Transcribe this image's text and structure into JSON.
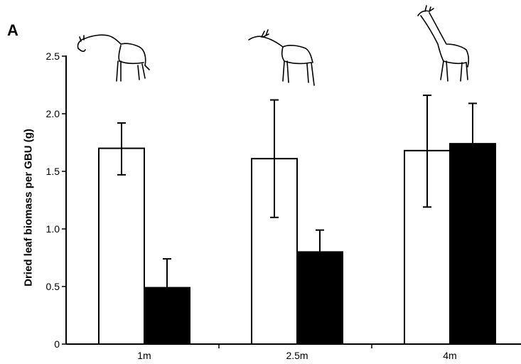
{
  "panel_label": "A",
  "colors": {
    "series_1": "#ffffff",
    "series_2": "#000000",
    "stroke": "#000000"
  },
  "icons": [
    "giraffe-browsing-low-icon",
    "giraffe-browsing-mid-icon",
    "giraffe-browsing-high-icon"
  ],
  "chart_data": {
    "type": "bar",
    "title": "",
    "xlabel": "",
    "ylabel": "Dried leaf biomass per GBU (g)",
    "categories": [
      "1m",
      "2.5m",
      "4m"
    ],
    "ylim": [
      0,
      2.5
    ],
    "yticks": [
      "0",
      "0.5",
      "1.0",
      "1.5",
      "2.0",
      "2.5"
    ],
    "grid": false,
    "legend": "none",
    "series": [
      {
        "values": [
          1.7,
          1.61,
          1.68
        ],
        "error_low": [
          1.47,
          1.1,
          1.19
        ],
        "error_high": [
          1.92,
          2.12,
          2.16
        ]
      },
      {
        "values": [
          0.49,
          0.8,
          1.74
        ],
        "error_low": [
          0.49,
          0.8,
          1.74
        ],
        "error_high": [
          0.74,
          0.99,
          2.09
        ]
      }
    ]
  }
}
